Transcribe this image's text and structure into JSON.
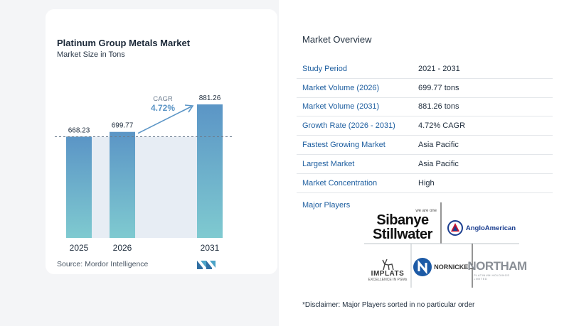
{
  "chart_data": {
    "type": "bar",
    "title": "Platinum Group Metals Market",
    "subtitle": "Market Size in Tons",
    "categories": [
      "2025",
      "2026",
      "2031"
    ],
    "values": [
      668.23,
      699.77,
      881.26
    ],
    "value_labels": [
      "668.23",
      "699.77",
      "881.26"
    ],
    "cagr_label": "CAGR",
    "cagr_value": "4.72%",
    "bar_color_top": "#5b95c6",
    "bar_color_bottom": "#7fcad0",
    "ylim": [
      0,
      881.26
    ]
  },
  "source": "Source:  Mordor Intelligence",
  "overview": {
    "title": "Market Overview",
    "rows": [
      {
        "label": "Study Period",
        "value": "2021 - 2031"
      },
      {
        "label": "Market Volume (2026)",
        "value": "699.77 tons"
      },
      {
        "label": "Market Volume (2031)",
        "value": "881.26 tons"
      },
      {
        "label": "Growth Rate (2026 - 2031)",
        "value": "4.72% CAGR"
      },
      {
        "label": "Fastest Growing Market",
        "value": "Asia Pacific"
      },
      {
        "label": "Largest Market",
        "value": "Asia Pacific"
      },
      {
        "label": "Market Concentration",
        "value": "High"
      }
    ]
  },
  "players": {
    "label": "Major Players",
    "sibanye_small": "we are one",
    "sibanye_line1": "Sibanye",
    "sibanye_line2": "Stillwater",
    "anglo": "AngloAmerican",
    "implats": "IMPLATS",
    "implats_tag": "EXCELLENCE IN PGMs",
    "nornickel": "NORNICKEL",
    "northam": "NORTHAM",
    "northam_tag": "PLATINUM HOLDINGS LIMITED"
  },
  "disclaimer": "*Disclaimer: Major Players sorted in no particular order"
}
